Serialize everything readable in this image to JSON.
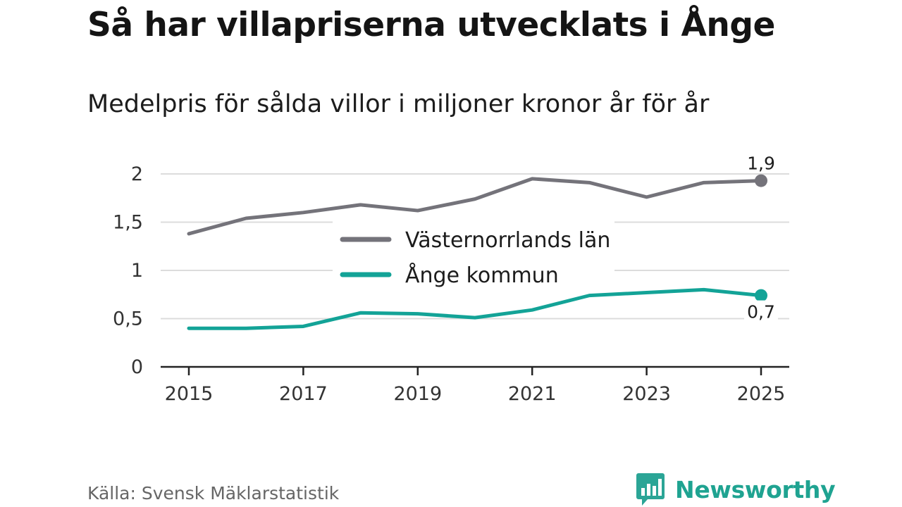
{
  "header": {
    "title": "Så har villapriserna utvecklats i Ånge",
    "subtitle": "Medelpris för sålda villor i miljoner kronor år för år"
  },
  "footer": {
    "source": "Källa: Svensk Mäklarstatistik",
    "brand": "Newsworthy"
  },
  "colors": {
    "series_lan": "#74737a",
    "series_kommun": "#13a397",
    "grid": "#dcdcdc",
    "axis": "#222222",
    "brand": "#1fa391"
  },
  "chart_data": {
    "type": "line",
    "title": "Så har villapriserna utvecklats i Ånge",
    "subtitle": "Medelpris för sålda villor i miljoner kronor år för år",
    "xlabel": "",
    "ylabel": "",
    "x": [
      2015,
      2016,
      2017,
      2018,
      2019,
      2020,
      2021,
      2022,
      2023,
      2024,
      2025
    ],
    "xticks": [
      2015,
      2017,
      2019,
      2021,
      2023,
      2025
    ],
    "xtick_labels": [
      "2015",
      "2017",
      "2019",
      "2021",
      "2023",
      "2025"
    ],
    "ylim": [
      0,
      2
    ],
    "yticks": [
      0,
      0.5,
      1,
      1.5,
      2
    ],
    "ytick_labels": [
      "0",
      "0,5",
      "1",
      "1,5",
      "2"
    ],
    "grid": true,
    "legend_position": "center",
    "series": [
      {
        "name": "Västernorrlands län",
        "values": [
          1.38,
          1.54,
          1.6,
          1.68,
          1.62,
          1.74,
          1.95,
          1.91,
          1.76,
          1.91,
          1.93
        ],
        "end_label": "1,9",
        "end_label_position": "above"
      },
      {
        "name": "Ånge kommun",
        "values": [
          0.4,
          0.4,
          0.42,
          0.56,
          0.55,
          0.51,
          0.59,
          0.74,
          0.77,
          0.8,
          0.74
        ],
        "end_label": "0,7",
        "end_label_position": "below"
      }
    ]
  }
}
